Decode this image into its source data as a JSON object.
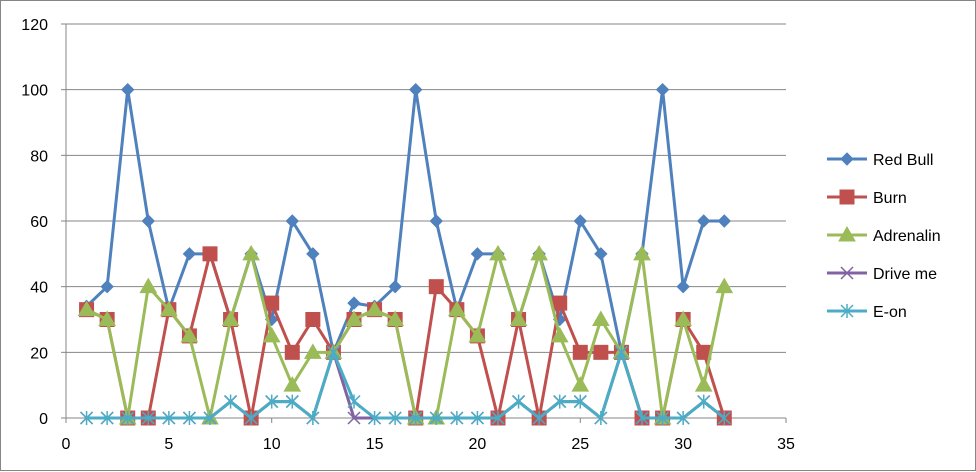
{
  "chart_data": {
    "type": "line",
    "title": "",
    "xlabel": "",
    "ylabel": "",
    "xlim": [
      0,
      35
    ],
    "ylim": [
      0,
      120
    ],
    "x_ticks": [
      0,
      5,
      10,
      15,
      20,
      25,
      30,
      35
    ],
    "y_ticks": [
      0,
      20,
      40,
      60,
      80,
      100,
      120
    ],
    "grid": "horizontal major gridlines",
    "legend_position": "right",
    "x": [
      1,
      2,
      3,
      4,
      5,
      6,
      7,
      8,
      9,
      10,
      11,
      12,
      13,
      14,
      15,
      16,
      17,
      18,
      19,
      20,
      21,
      22,
      23,
      24,
      25,
      26,
      27,
      28,
      29,
      30,
      31,
      32
    ],
    "series": [
      {
        "name": "Red Bull",
        "color": "#4f81bd",
        "marker": "diamond",
        "values": [
          34,
          40,
          100,
          60,
          33,
          50,
          50,
          30,
          50,
          30,
          60,
          50,
          20,
          35,
          34,
          40,
          100,
          60,
          33,
          50,
          50,
          30,
          50,
          30,
          60,
          50,
          20,
          50,
          100,
          40,
          60,
          60
        ]
      },
      {
        "name": "Burn",
        "color": "#c0504d",
        "marker": "square",
        "values": [
          33,
          30,
          0,
          0,
          33,
          25,
          50,
          30,
          0,
          35,
          20,
          30,
          20,
          30,
          33,
          30,
          0,
          40,
          33,
          25,
          0,
          30,
          0,
          35,
          20,
          20,
          20,
          0,
          0,
          30,
          20,
          0
        ]
      },
      {
        "name": "Adrenalin",
        "color": "#9bbb59",
        "marker": "triangle",
        "values": [
          33,
          30,
          0,
          40,
          33,
          25,
          0,
          30,
          50,
          25,
          10,
          20,
          20,
          30,
          33,
          30,
          0,
          0,
          33,
          25,
          50,
          30,
          50,
          25,
          10,
          30,
          20,
          50,
          0,
          30,
          10,
          40
        ]
      },
      {
        "name": "Drive me",
        "color": "#8064a2",
        "marker": "x",
        "values": [
          0,
          0,
          0,
          0,
          0,
          0,
          0,
          5,
          0,
          5,
          5,
          0,
          20,
          0,
          0,
          0,
          0,
          0,
          0,
          0,
          0,
          5,
          0,
          5,
          5,
          0,
          20,
          0,
          0,
          0,
          5,
          0
        ]
      },
      {
        "name": "E-on",
        "color": "#4bacc6",
        "marker": "star",
        "values": [
          0,
          0,
          0,
          0,
          0,
          0,
          0,
          5,
          0,
          5,
          5,
          0,
          20,
          5,
          0,
          0,
          0,
          0,
          0,
          0,
          0,
          5,
          0,
          5,
          5,
          0,
          20,
          0,
          0,
          0,
          5,
          0
        ]
      }
    ]
  }
}
